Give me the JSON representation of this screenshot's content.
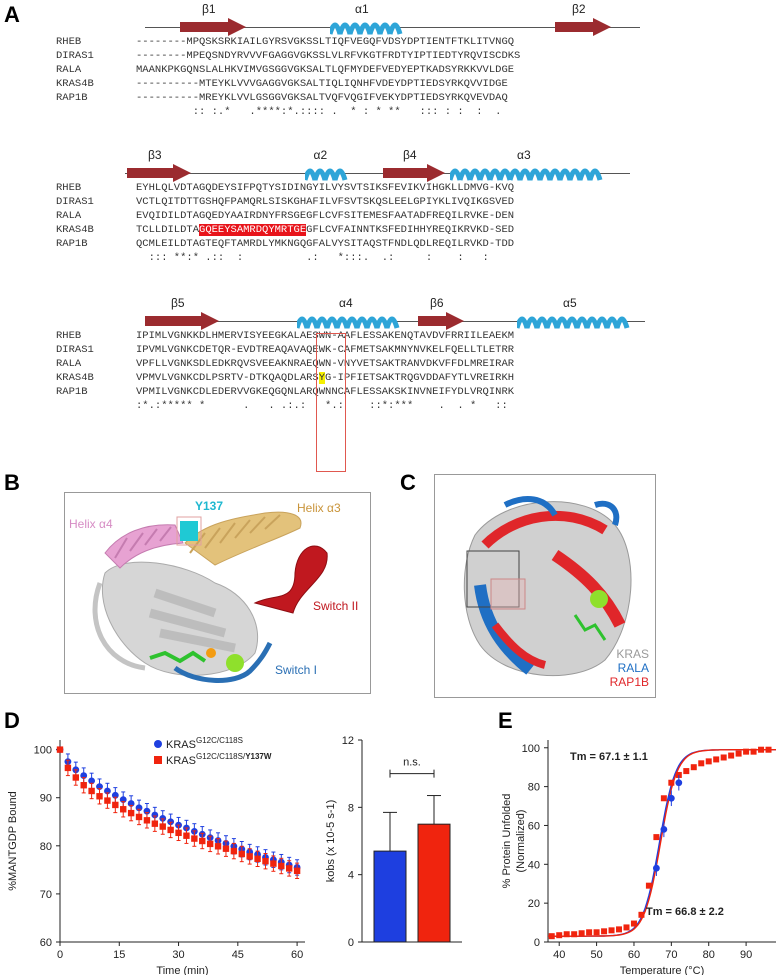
{
  "panels": {
    "a": "A",
    "b": "B",
    "c": "C",
    "d": "D",
    "e": "E"
  },
  "alignment": {
    "blocks": [
      {
        "ss": [
          {
            "label": "β1",
            "type": "strand"
          },
          {
            "label": "α1",
            "type": "helix"
          },
          {
            "label": "β2",
            "type": "strand"
          }
        ],
        "rows": [
          {
            "name": "RHEB",
            "seq": "--------MPQSKSRKIAILGYRSVGKSSLTIQFVEGQFVDSYDPTIENTFTKLITVNGQ"
          },
          {
            "name": "DIRAS1",
            "seq": "--------MPEQSNDYRVVVFGAGGVGKSSLVLRFVKGTFRDTYIPTIEDTYRQVISCDKS"
          },
          {
            "name": "RALA",
            "seq": "MAANKPKGQNSLALHKVIMVGSGGVGKSALTLQFMYDEFVEDYEPTKADSYRKKVVLDGE"
          },
          {
            "name": "KRAS4B",
            "seq": "----------MTEYKLVVVGAGGVGKSALTIQLIQNHFVDEYDPTIEDSYRKQVVIDGE"
          },
          {
            "name": "RAP1B",
            "seq": "----------MREYKLVVLGSGGVGKSALTVQFVQGIFVEKYDPTIEDSYRKQVEVDAQ"
          }
        ],
        "consensus": "         :: :.*   .****:*.:::: .  * : * **   ::: : :  :  ."
      },
      {
        "ss": [
          {
            "label": "β3",
            "type": "strand"
          },
          {
            "label": "α2",
            "type": "helix"
          },
          {
            "label": "β4",
            "type": "strand"
          },
          {
            "label": "α3",
            "type": "helix"
          }
        ],
        "rows": [
          {
            "name": "RHEB",
            "seq": "EYHLQLVDTAGQDEYSIFPQTYSIDINGYILVYSVTSIKSFEVIKVIHGKLLDMVG-KVQ"
          },
          {
            "name": "DIRAS1",
            "seq": "VCTLQITDTTGSHQFPAMQRLSISKGHAFILVFSVTSKQSLEELGPIYKLIVQIKGSVED"
          },
          {
            "name": "RALA",
            "seq": "EVQIDILDTAGQEDYAAIRDNYFRSGEGFLCVFSITEMESFAATADFREQILRVKE-DEN"
          },
          {
            "name": "KRAS4B",
            "seq": "TCLLDILDTAGQEEYSAMRDQYMRTGEGFLCVFAINNTKSFEDIHHYREQIKRVKD-SED",
            "hl": "GQEEYSAMRDQYMRTGE"
          },
          {
            "name": "RAP1B",
            "seq": "QCMLEILDTAGTEQFTAMRDLYMKNGQGFALVYSITAQSTFNDLQDLREQILRVKD-TDD"
          }
        ],
        "consensus": "  ::: **:* .::  :          .:   *:::.  .:     :    :   :"
      },
      {
        "ss": [
          {
            "label": "β5",
            "type": "strand"
          },
          {
            "label": "α4",
            "type": "helix"
          },
          {
            "label": "β6",
            "type": "strand"
          },
          {
            "label": "α5",
            "type": "helix"
          }
        ],
        "rows": [
          {
            "name": "RHEB",
            "seq": "IPIMLVGNKKDLHMERVISYEEGKALAESWN-AAFLESSAKENQTAVDVFRRIILEAEKM"
          },
          {
            "name": "DIRAS1",
            "seq": "IPVMLVGNKCDETQR-EVDTREAQAVAQEWK-CAFMETSAKMNYNVKELFQELLTLETRR"
          },
          {
            "name": "RALA",
            "seq": "VPFLLVGNKSDLEDKRQVSVEEAKNRAEQWN-VNYVETSAKTRANVDKVFFDLMREIRAR"
          },
          {
            "name": "KRAS4B",
            "seq": "VPMVLVGNKCDLPSRTV-DTKQAQDLARSYG-IPFIETSAKTRQGVDDAFYTLVREIRKH",
            "yhl": 29
          },
          {
            "name": "RAP1B",
            "seq": "VPMILVGNKCDLEDERVVGKEQGQNLARQWNNCAFLESSAKSKINVNEIFYDLVRQINRK"
          }
        ],
        "consensus": ":*.:***** *      .   . .:.:   *.:    ::*:***    .  . *   ::"
      }
    ]
  },
  "structure_b": {
    "labels": {
      "y137": "Y137",
      "helix_a3": "Helix α3",
      "helix_a4": "Helix α4",
      "switch2": "Switch II",
      "switch1": "Switch I"
    }
  },
  "structure_c": {
    "legend": [
      {
        "name": "KRAS",
        "color": "#9a9a9a"
      },
      {
        "name": "RALA",
        "color": "#1f6fc4"
      },
      {
        "name": "RAP1B",
        "color": "#e0262a"
      }
    ]
  },
  "colors": {
    "strand": "#9b2b2f",
    "helix": "#2ea5d8",
    "blue": "#1e3fe0",
    "red": "#f0240e",
    "kras_hl": "#e8141b",
    "y_hl": "#f5f000"
  },
  "chart_data": [
    {
      "type": "scatter",
      "ylabel": "%MANTGDP Bound",
      "xlabel": "Time (min)",
      "xticks": [
        0,
        15,
        30,
        45,
        60
      ],
      "yticks": [
        60,
        70,
        80,
        90,
        100
      ],
      "xlim": [
        0,
        62
      ],
      "ylim": [
        60,
        102
      ],
      "series": [
        {
          "name": "KRASG12C/C118S",
          "color": "#1e3fe0",
          "x": [
            0,
            2,
            4,
            6,
            8,
            10,
            12,
            14,
            16,
            18,
            20,
            22,
            24,
            26,
            28,
            30,
            32,
            34,
            36,
            38,
            40,
            42,
            44,
            46,
            48,
            50,
            52,
            54,
            56,
            58,
            60
          ],
          "y": [
            100,
            97.5,
            95.8,
            94.6,
            93.5,
            92.3,
            91.4,
            90.5,
            89.6,
            88.8,
            87.9,
            87.2,
            86.4,
            85.7,
            85.0,
            84.3,
            83.7,
            83.0,
            82.4,
            81.7,
            81.1,
            80.5,
            79.9,
            79.3,
            78.7,
            78.2,
            77.6,
            77.1,
            76.6,
            76.0,
            75.5
          ]
        },
        {
          "name": "KRASG12C/C118S/Y137W",
          "color": "#f0240e",
          "x": [
            0,
            2,
            4,
            6,
            8,
            10,
            12,
            14,
            16,
            18,
            20,
            22,
            24,
            26,
            28,
            30,
            32,
            34,
            36,
            38,
            40,
            42,
            44,
            46,
            48,
            50,
            52,
            54,
            56,
            58,
            60
          ],
          "y": [
            100,
            96.2,
            94.2,
            92.6,
            91.4,
            90.3,
            89.4,
            88.5,
            87.6,
            86.8,
            86.0,
            85.3,
            84.6,
            84.0,
            83.3,
            82.7,
            82.1,
            81.5,
            81.0,
            80.4,
            79.9,
            79.4,
            78.9,
            78.3,
            77.8,
            77.3,
            76.8,
            76.3,
            75.8,
            75.3,
            74.8
          ]
        }
      ],
      "legend_labels": [
        {
          "base": "KRAS",
          "sup": "G12C/C118S",
          "bold": ""
        },
        {
          "base": "KRAS",
          "sup": "G12C/C118S/",
          "bold": "Y137W"
        }
      ]
    },
    {
      "type": "bar",
      "ylabel": "kobs (x 10-5 s-1)",
      "categories": [
        "KRASG12C/C118S",
        "KRASG12C/C118S/Y137W"
      ],
      "values": [
        5.4,
        7.0
      ],
      "errors": [
        2.3,
        1.7
      ],
      "colors": [
        "#1e3fe0",
        "#f0240e"
      ],
      "yticks": [
        0,
        4,
        8,
        12
      ],
      "ylim": [
        0,
        12
      ],
      "annotation": "n.s."
    },
    {
      "type": "line",
      "ylabel": "% Protein Unfolded (Normalized)",
      "xlabel": "Temperature (°C)",
      "xticks": [
        40,
        50,
        60,
        70,
        80,
        90
      ],
      "yticks": [
        0,
        20,
        40,
        60,
        80,
        100
      ],
      "xlim": [
        37,
        98
      ],
      "ylim": [
        0,
        104
      ],
      "annotations": [
        {
          "text": "Tm = 67.1 ± 1.1",
          "color": "#f0240e"
        },
        {
          "text": "Tm = 66.8 ± 2.2",
          "color": "#1e3fe0"
        }
      ],
      "series": [
        {
          "name": "blue",
          "color": "#1e3fe0",
          "tm": 66.8,
          "x": [
            66,
            68,
            70,
            72
          ],
          "y": [
            38,
            58,
            74,
            82
          ]
        },
        {
          "name": "red",
          "color": "#f0240e",
          "tm": 67.1,
          "x": [
            38,
            40,
            42,
            44,
            46,
            48,
            50,
            52,
            54,
            56,
            58,
            60,
            62,
            64,
            66,
            68,
            70,
            72,
            74,
            76,
            78,
            80,
            82,
            84,
            86,
            88,
            90,
            92,
            94,
            96
          ],
          "y": [
            3,
            3.5,
            4,
            4,
            4.5,
            5,
            5,
            5.5,
            6,
            6.5,
            7.5,
            9.5,
            14,
            29,
            54,
            74,
            82,
            86,
            88,
            90,
            92,
            93,
            94,
            95,
            96,
            97,
            98,
            98,
            99,
            99
          ]
        }
      ]
    }
  ]
}
